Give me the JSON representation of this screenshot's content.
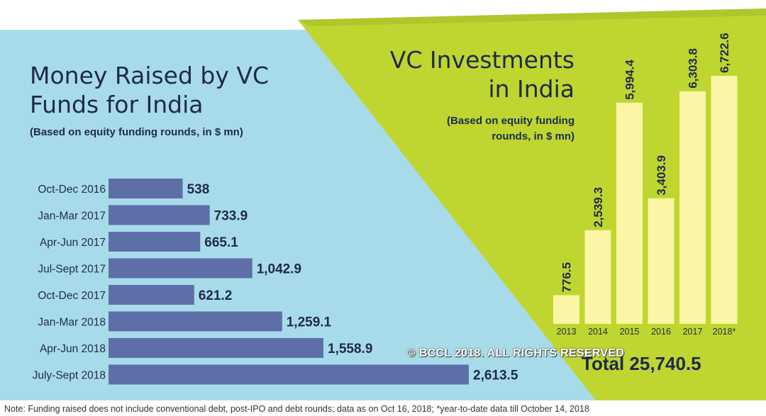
{
  "copyright": "© BCCL 2018. ALL RIGHTS RESERVED",
  "note": "Note: Funding raised does not include conventional debt, post-IPO and debt rounds; data as on Oct 16, 2018; *year-to-date data till October 14, 2018",
  "colors": {
    "left_bg": "#a8dbe9",
    "right_bg": "#bfd630",
    "bar_blue": "#5e6fa8",
    "bar_yellow": "#fbf6a6",
    "text_dark": "#1f2a4a"
  },
  "chart_data": [
    {
      "type": "bar",
      "orientation": "horizontal",
      "title": "Money Raised by VC Funds for India",
      "subtitle": "(Based on equity funding rounds, in $ mn)",
      "categories": [
        "Oct-Dec 2016",
        "Jan-Mar 2017",
        "Apr-Jun 2017",
        "Jul-Sept 2017",
        "Oct-Dec 2017",
        "Jan-Mar 2018",
        "Apr-Jun 2018",
        "July-Sept 2018"
      ],
      "values": [
        538,
        733.9,
        665.1,
        1042.9,
        621.2,
        1259.1,
        1558.9,
        2613.5
      ],
      "value_labels": [
        "538",
        "733.9",
        "665.1",
        "1,042.9",
        "621.2",
        "1,259.1",
        "1,558.9",
        "2,613.5"
      ],
      "xlim": [
        0,
        2613.5
      ],
      "grid": false
    },
    {
      "type": "bar",
      "orientation": "vertical",
      "title": "VC Investments in India",
      "subtitle": "(Based on equity funding rounds, in $ mn)",
      "categories": [
        "2013",
        "2014",
        "2015",
        "2016",
        "2017",
        "2018*"
      ],
      "values": [
        776.5,
        2539.3,
        5994.4,
        3403.9,
        6303.8,
        6722.6
      ],
      "value_labels": [
        "776.5",
        "2,539.3",
        "5,994.4",
        "3,403.9",
        "6,303.8",
        "6,722.6"
      ],
      "ylim": [
        0,
        6722.6
      ],
      "grid": false,
      "total_label": "Total 25,740.5"
    }
  ]
}
